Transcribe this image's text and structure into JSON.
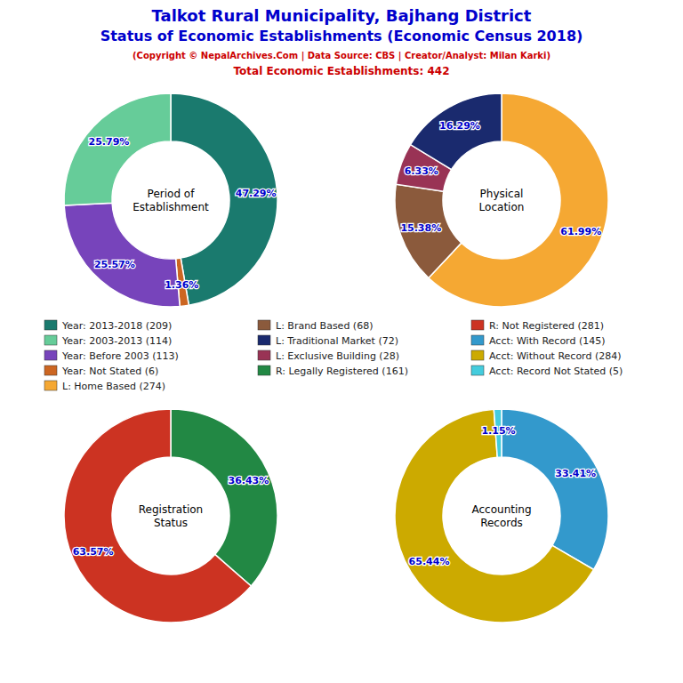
{
  "title": [
    "Talkot Rural Municipality, Bajhang District",
    "Status of Economic Establishments (Economic Census 2018)"
  ],
  "subtitle": [
    "(Copyright © NepalArchives.Com | Data Source: CBS | Creator/Analyst: Milan Karki)",
    "Total Economic Establishments: 442"
  ],
  "title_color": "#0000CC",
  "subtitle_color": "#CC0000",
  "data_label_color": "#0000CC",
  "chart_data": [
    {
      "type": "pie",
      "title": "Period of\nEstablishment",
      "values": [
        47.29,
        1.36,
        25.57,
        25.79
      ],
      "value_labels": [
        "47.29%",
        "1.36%",
        "25.57%",
        "25.79%"
      ],
      "colors": [
        "#1a7a6e",
        "#cc6622",
        "#7744bb",
        "#66cc99"
      ],
      "data_labels": true
    },
    {
      "type": "pie",
      "title": "Physical\nLocation",
      "values": [
        61.99,
        15.38,
        6.33,
        16.29
      ],
      "value_labels": [
        "61.99%",
        "15.38%",
        "6.33%",
        "16.29%"
      ],
      "colors": [
        "#f5a833",
        "#8B5a3C",
        "#993355",
        "#1a2a6e"
      ],
      "data_labels": true
    },
    {
      "type": "pie",
      "title": "Registration\nStatus",
      "values": [
        36.43,
        63.57
      ],
      "value_labels": [
        "36.43%",
        "63.57%"
      ],
      "colors": [
        "#228844",
        "#cc3322"
      ],
      "data_labels": true
    },
    {
      "type": "pie",
      "title": "Accounting\nRecords",
      "values": [
        33.41,
        65.44,
        1.15
      ],
      "value_labels": [
        "33.41%",
        "65.44%",
        "1.15%"
      ],
      "colors": [
        "#3399cc",
        "#ccaa00",
        "#44ccdd"
      ],
      "data_labels": true
    }
  ],
  "legend_items": [
    {
      "name": "Year: 2013-2018 (209)",
      "color": "#1a7a6e"
    },
    {
      "name": "Year: 2003-2013 (114)",
      "color": "#66cc99"
    },
    {
      "name": "Year: Before 2003 (113)",
      "color": "#7744bb"
    },
    {
      "name": "Year: Not Stated (6)",
      "color": "#cc6622"
    },
    {
      "name": "L: Home Based (274)",
      "color": "#f5a833"
    },
    {
      "name": "L: Brand Based (68)",
      "color": "#8B5a3C"
    },
    {
      "name": "L: Traditional Market (72)",
      "color": "#1a2a6e"
    },
    {
      "name": "L: Exclusive Building (28)",
      "color": "#993355"
    },
    {
      "name": "R: Legally Registered (161)",
      "color": "#228844"
    },
    {
      "name": "R: Not Registered (281)",
      "color": "#cc3322"
    },
    {
      "name": "Acct: With Record (145)",
      "color": "#3399cc"
    },
    {
      "name": "Acct: Without Record (284)",
      "color": "#ccaa00"
    },
    {
      "name": "Acct: Record Not Stated (5)",
      "color": "#44ccdd"
    }
  ]
}
